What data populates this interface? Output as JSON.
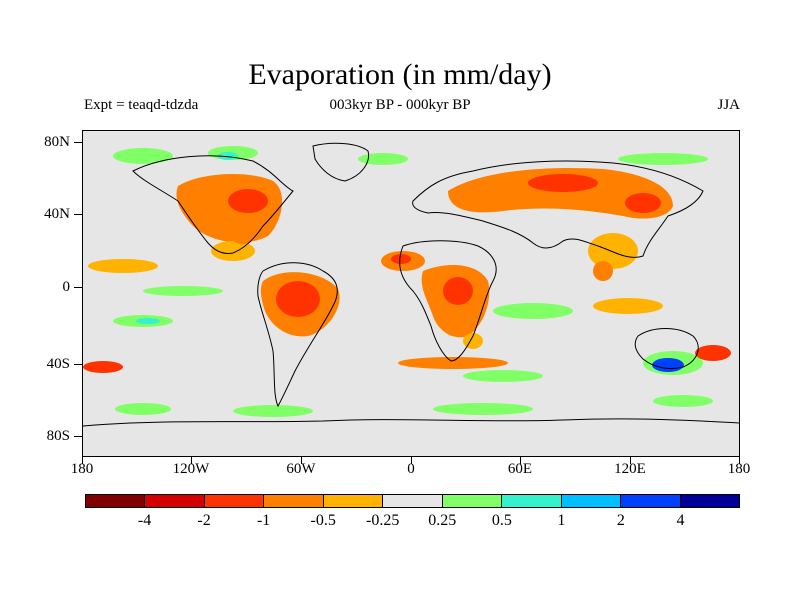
{
  "title": "Evaporation (in mm/day)",
  "subtitle_left": "Expt = teaqd-tdzda",
  "subtitle_center": "003kyr BP - 000kyr BP",
  "subtitle_right": "JJA",
  "lat_labels": [
    "80N",
    "40N",
    "0",
    "40S",
    "80S"
  ],
  "lon_labels": [
    "180",
    "120W",
    "60W",
    "0",
    "60E",
    "120E",
    "180"
  ],
  "colorbar": {
    "colors": [
      "#800000",
      "#d40000",
      "#ff3300",
      "#ff8000",
      "#ffb300",
      "#e6e6e6",
      "#80ff66",
      "#33f2cc",
      "#00bfff",
      "#0040ff",
      "#000099"
    ],
    "labels": [
      "-4",
      "-2",
      "-1",
      "-0.5",
      "-0.25",
      "0.25",
      "0.5",
      "1",
      "2",
      "4"
    ]
  },
  "colors": {
    "background": "#e6e6e6",
    "orange": "#ff8000",
    "yellow": "#ffb300",
    "red": "#ff3300",
    "green": "#80ff66",
    "cyan": "#33f2cc",
    "blue": "#0040ff"
  }
}
